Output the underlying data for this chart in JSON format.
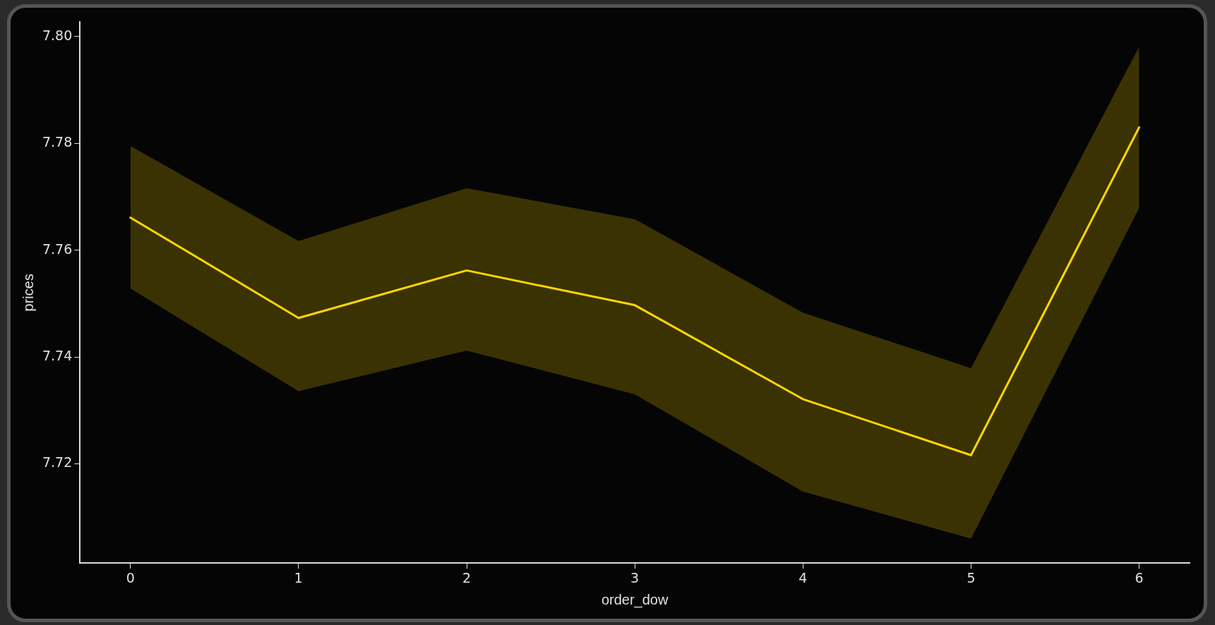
{
  "chart_data": {
    "type": "line",
    "xlabel": "order_dow",
    "ylabel": "prices",
    "x": [
      0,
      1,
      2,
      3,
      4,
      5,
      6
    ],
    "series": [
      {
        "color": "#ffd700",
        "values": [
          7.7661,
          7.7473,
          7.7562,
          7.7497,
          7.7321,
          7.7216,
          7.783
        ],
        "lower": [
          7.7528,
          7.7336,
          7.7412,
          7.733,
          7.7148,
          7.706,
          7.7679
        ],
        "upper": [
          7.7795,
          7.7617,
          7.7716,
          7.7658,
          7.7483,
          7.7379,
          7.7981
        ]
      }
    ],
    "xlim": [
      -0.3,
      6.3
    ],
    "xticks": [
      0,
      1,
      2,
      3,
      4,
      5,
      6
    ],
    "ylim": [
      7.7014,
      7.8027
    ],
    "yticks": [
      {
        "value": 7.72,
        "label": "7.72"
      },
      {
        "value": 7.74,
        "label": "7.74"
      },
      {
        "value": 7.76,
        "label": "7.76"
      },
      {
        "value": 7.78,
        "label": "7.78"
      },
      {
        "value": 7.8,
        "label": "7.80"
      }
    ],
    "grid": false,
    "legend": false,
    "marker": "none",
    "line_style": "solid"
  }
}
